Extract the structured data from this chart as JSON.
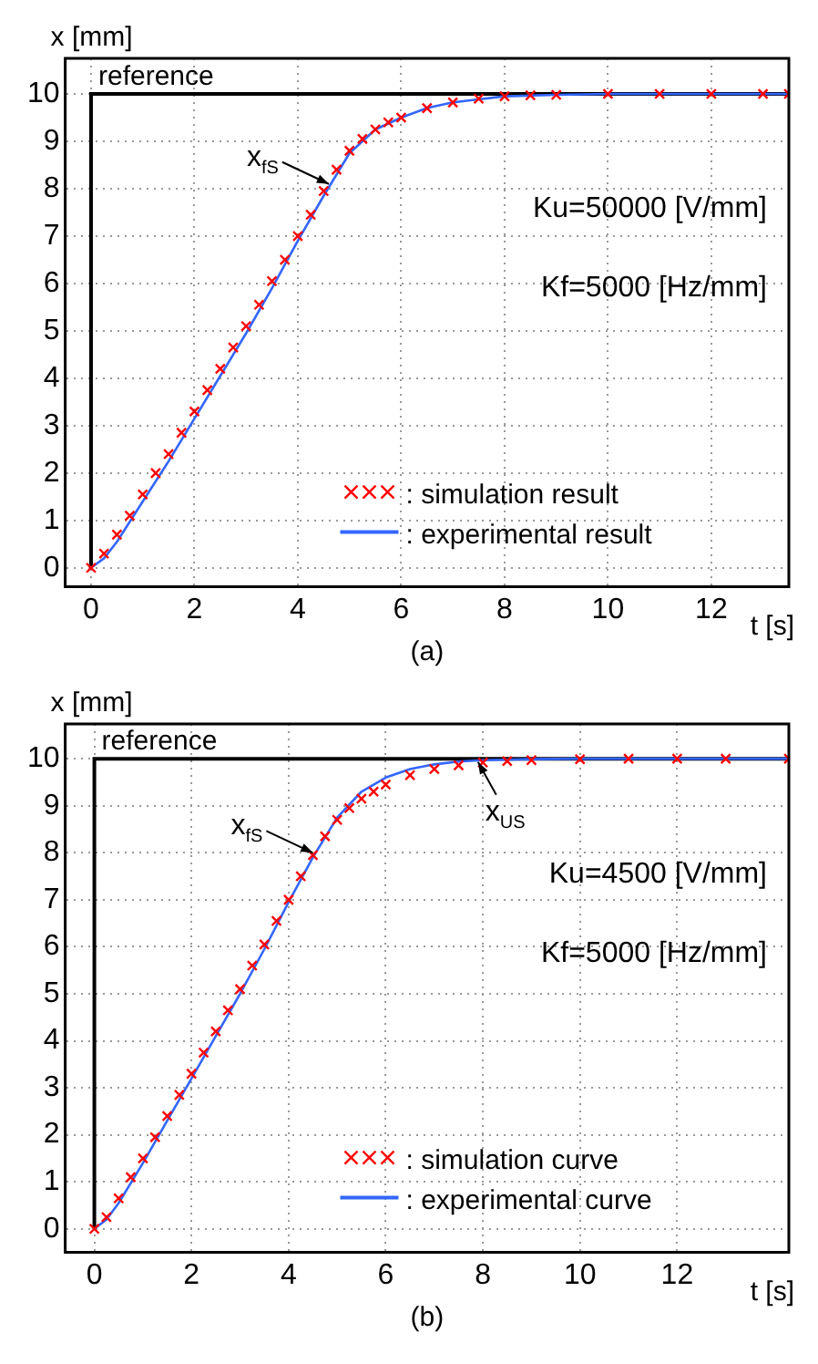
{
  "chart_data": [
    {
      "type": "line",
      "title": "(a)",
      "xlabel": "t [s]",
      "ylabel": "x [mm]",
      "xlim": [
        -0.5,
        13.5
      ],
      "ylim": [
        -0.4,
        10.75
      ],
      "xticks": [
        0,
        2,
        4,
        6,
        8,
        10,
        12
      ],
      "yticks": [
        0,
        1,
        2,
        3,
        4,
        5,
        6,
        7,
        8,
        9,
        10
      ],
      "grid": true,
      "legend": "bottom right",
      "annotations": [
        "Ku=50000 [V/mm]",
        "Kf=5000 [Hz/mm]",
        {
          "text": "reference",
          "x": 0,
          "y": 10
        },
        {
          "text": "x$_{fS}$",
          "x": 4.6,
          "y": 8.1
        }
      ],
      "series": [
        {
          "type": "step",
          "color": "#000000",
          "x": [
            0,
            13.5
          ],
          "values": [
            0,
            10
          ]
        },
        {
          "name": ": simulation result",
          "type": "scatter",
          "marker": "cross",
          "color": "#ff0000",
          "x": [
            0,
            0.25,
            0.5,
            0.75,
            1,
            1.25,
            1.5,
            1.75,
            2,
            2.25,
            2.5,
            2.75,
            3,
            3.25,
            3.5,
            3.75,
            4,
            4.25,
            4.5,
            4.75,
            5,
            5.25,
            5.5,
            5.75,
            6,
            6.5,
            7,
            7.5,
            8,
            8.5,
            9,
            10,
            11,
            12,
            13,
            13.5
          ],
          "values": [
            0,
            0.3,
            0.7,
            1.1,
            1.55,
            2.0,
            2.4,
            2.85,
            3.3,
            3.75,
            4.2,
            4.65,
            5.1,
            5.55,
            6.05,
            6.5,
            7.0,
            7.45,
            7.95,
            8.4,
            8.8,
            9.05,
            9.25,
            9.4,
            9.5,
            9.7,
            9.82,
            9.9,
            9.95,
            9.97,
            9.98,
            10,
            10,
            10,
            10,
            10
          ]
        },
        {
          "name": ": experimental result",
          "marker": "none",
          "color": "#3366ff",
          "x": [
            0,
            0.25,
            0.5,
            1,
            1.5,
            2,
            2.5,
            3,
            3.5,
            4,
            4.5,
            5,
            5.5,
            6,
            6.5,
            7,
            8,
            9,
            10,
            13.5
          ],
          "values": [
            0,
            0.2,
            0.55,
            1.4,
            2.25,
            3.15,
            4.05,
            4.95,
            5.9,
            6.9,
            7.85,
            8.75,
            9.25,
            9.5,
            9.7,
            9.82,
            9.95,
            9.98,
            10,
            10
          ]
        }
      ]
    },
    {
      "type": "line",
      "title": "(b)",
      "xlabel": "t [s]",
      "ylabel": "x [mm]",
      "xlim": [
        -0.6,
        14.3
      ],
      "ylim": [
        -0.5,
        10.74
      ],
      "xticks": [
        0,
        2,
        4,
        6,
        8,
        10,
        12
      ],
      "yticks": [
        0,
        1,
        2,
        3,
        4,
        5,
        6,
        7,
        8,
        9,
        10
      ],
      "grid": true,
      "legend": "bottom right",
      "annotations": [
        "Ku=4500 [V/mm]",
        "Kf=5000 [Hz/mm]",
        {
          "text": "reference",
          "x": 0,
          "y": 10
        },
        {
          "text": "x$_{fS}$",
          "x": 4.5,
          "y": 8.0
        },
        {
          "text": "x$_{US}$",
          "x": 7.9,
          "y": 9.93
        }
      ],
      "series": [
        {
          "type": "step",
          "color": "#000000",
          "x": [
            0,
            14.3
          ],
          "values": [
            0,
            10
          ]
        },
        {
          "name": ": simulation curve",
          "type": "scatter",
          "marker": "cross",
          "color": "#ff0000",
          "x": [
            0,
            0.25,
            0.5,
            0.75,
            1,
            1.25,
            1.5,
            1.75,
            2,
            2.25,
            2.5,
            2.75,
            3,
            3.25,
            3.5,
            3.75,
            4,
            4.25,
            4.5,
            4.75,
            5,
            5.25,
            5.5,
            5.75,
            6,
            6.5,
            7,
            7.5,
            8,
            8.5,
            9,
            10,
            11,
            12,
            13,
            14.3
          ],
          "values": [
            0,
            0.25,
            0.65,
            1.1,
            1.5,
            1.95,
            2.4,
            2.85,
            3.3,
            3.75,
            4.2,
            4.65,
            5.1,
            5.6,
            6.05,
            6.55,
            7.0,
            7.5,
            7.95,
            8.35,
            8.7,
            8.95,
            9.15,
            9.3,
            9.45,
            9.65,
            9.78,
            9.86,
            9.92,
            9.95,
            9.97,
            9.99,
            10,
            10,
            10,
            10
          ]
        },
        {
          "name": ": experimental curve",
          "marker": "none",
          "color": "#3366ff",
          "x": [
            0,
            0.25,
            0.5,
            1,
            1.5,
            2,
            2.5,
            3,
            3.5,
            4,
            4.5,
            5,
            5.5,
            6,
            6.5,
            7,
            7.5,
            8,
            9,
            10,
            14.3
          ],
          "values": [
            0,
            0.2,
            0.55,
            1.4,
            2.3,
            3.2,
            4.1,
            5.0,
            5.95,
            6.95,
            7.9,
            8.75,
            9.3,
            9.6,
            9.78,
            9.88,
            9.94,
            9.97,
            9.99,
            10,
            10
          ]
        }
      ]
    }
  ]
}
